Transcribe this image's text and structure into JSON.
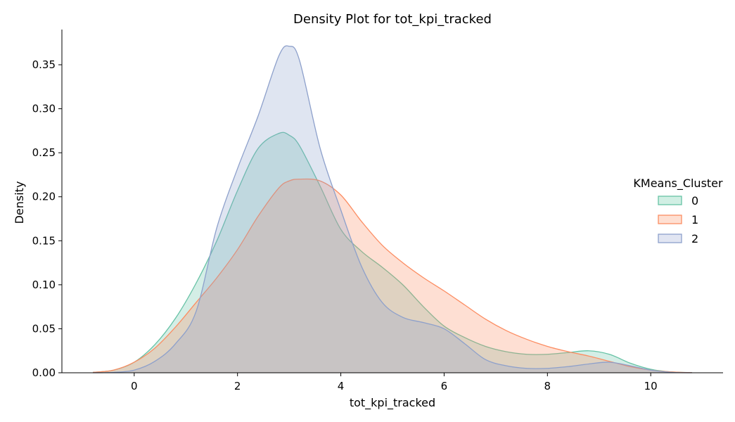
{
  "chart_data": {
    "type": "area",
    "title": "Density Plot for tot_kpi_tracked",
    "xlabel": "tot_kpi_tracked",
    "ylabel": "Density",
    "xlim": [
      -1.4,
      11.4
    ],
    "ylim": [
      0,
      0.39
    ],
    "xticks": [
      "0",
      "2",
      "4",
      "6",
      "8",
      "10"
    ],
    "yticks": [
      "0.00",
      "0.05",
      "0.10",
      "0.15",
      "0.20",
      "0.25",
      "0.30",
      "0.35"
    ],
    "grid": false,
    "legend": {
      "title": "KMeans_Cluster",
      "placement": "right"
    },
    "x": [
      -0.8,
      -0.4,
      0,
      0.4,
      0.8,
      1.2,
      1.6,
      2.0,
      2.4,
      2.8,
      3.0,
      3.2,
      3.6,
      4.0,
      4.4,
      4.8,
      5.2,
      5.6,
      6.0,
      6.4,
      6.8,
      7.2,
      7.6,
      8.0,
      8.4,
      8.8,
      9.2,
      9.6,
      10.0,
      10.4,
      10.8
    ],
    "series": [
      {
        "name": "0",
        "color": "#66c2a5",
        "fill": "#d1efe4",
        "values": [
          0.0005,
          0.003,
          0.012,
          0.032,
          0.062,
          0.102,
          0.15,
          0.207,
          0.255,
          0.272,
          0.27,
          0.258,
          0.212,
          0.163,
          0.138,
          0.12,
          0.1,
          0.075,
          0.053,
          0.04,
          0.03,
          0.024,
          0.021,
          0.021,
          0.023,
          0.025,
          0.021,
          0.011,
          0.004,
          0.001,
          0.0002
        ]
      },
      {
        "name": "1",
        "color": "#fc8d62",
        "fill": "#fedfd2",
        "values": [
          0.0005,
          0.003,
          0.012,
          0.028,
          0.052,
          0.08,
          0.108,
          0.14,
          0.178,
          0.21,
          0.218,
          0.22,
          0.218,
          0.202,
          0.172,
          0.145,
          0.125,
          0.108,
          0.093,
          0.077,
          0.061,
          0.048,
          0.038,
          0.03,
          0.024,
          0.019,
          0.013,
          0.007,
          0.003,
          0.001,
          0.0001
        ]
      },
      {
        "name": "2",
        "color": "#8da0cb",
        "fill": "#e1e5f2",
        "values": [
          0.0,
          0.0005,
          0.003,
          0.013,
          0.033,
          0.07,
          0.165,
          0.232,
          0.292,
          0.36,
          0.371,
          0.355,
          0.255,
          0.185,
          0.121,
          0.08,
          0.063,
          0.057,
          0.05,
          0.033,
          0.015,
          0.008,
          0.005,
          0.005,
          0.007,
          0.01,
          0.012,
          0.008,
          0.003,
          0.0005,
          0.0
        ]
      }
    ]
  }
}
